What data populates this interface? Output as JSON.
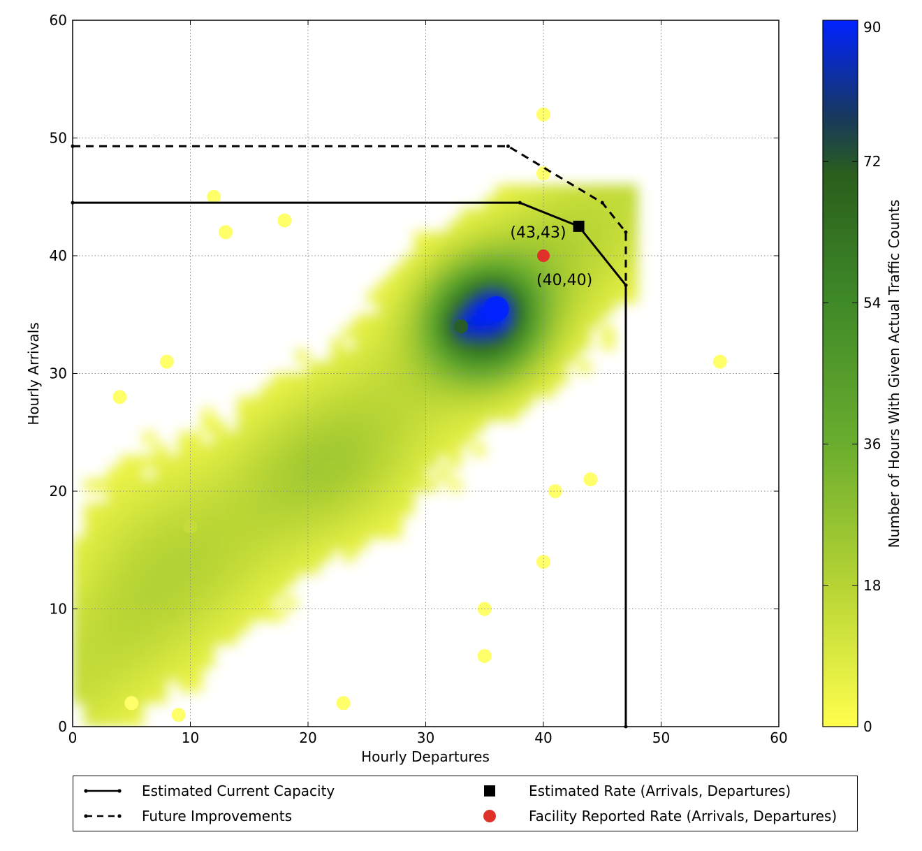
{
  "colors": {
    "cmap_low": "#ffff4d",
    "cmap_mid": "#4e9b2c",
    "cmap_dark": "#2a5f1c",
    "cmap_high": "#0022ff",
    "facility_point": "#e0302a",
    "estimated_point": "#000000",
    "grid": "#999999"
  },
  "chart_data": {
    "type": "heatmap",
    "xlabel": "Hourly Departures",
    "ylabel": "Hourly Arrivals",
    "xlim": [
      0,
      60
    ],
    "ylim": [
      0,
      60
    ],
    "xticks": [
      "0",
      "10",
      "20",
      "30",
      "40",
      "50",
      "60"
    ],
    "yticks": [
      "0",
      "10",
      "20",
      "30",
      "40",
      "50",
      "60"
    ],
    "grid": true,
    "colorbar": {
      "label": "Number of Hours With Given Actual Traffic Counts",
      "range": [
        0,
        90
      ],
      "ticks": [
        "0",
        "18",
        "36",
        "54",
        "72",
        "90"
      ]
    },
    "density_peaks": [
      {
        "x": 36,
        "y": 35.5,
        "count": 90
      },
      {
        "x": 33,
        "y": 34,
        "count": 70
      },
      {
        "x": 22,
        "y": 22,
        "count": 22
      },
      {
        "x": 10,
        "y": 17,
        "count": 14
      }
    ],
    "scattered_cells": [
      {
        "x": 40,
        "y": 52
      },
      {
        "x": 40,
        "y": 47
      },
      {
        "x": 55,
        "y": 31
      },
      {
        "x": 12,
        "y": 45
      },
      {
        "x": 13,
        "y": 42
      },
      {
        "x": 18,
        "y": 43
      },
      {
        "x": 23,
        "y": 2
      },
      {
        "x": 35,
        "y": 6
      },
      {
        "x": 35,
        "y": 10
      },
      {
        "x": 40,
        "y": 14
      },
      {
        "x": 44,
        "y": 21
      },
      {
        "x": 41,
        "y": 20
      },
      {
        "x": 9,
        "y": 1
      },
      {
        "x": 5,
        "y": 2
      },
      {
        "x": 4,
        "y": 28
      },
      {
        "x": 8,
        "y": 31
      }
    ],
    "series": [
      {
        "name": "Estimated Current Capacity",
        "style": "solid",
        "x": [
          0,
          38,
          43,
          47,
          47
        ],
        "y": [
          44.5,
          44.5,
          42.5,
          37.5,
          0
        ]
      },
      {
        "name": "Future Improvements",
        "style": "dashed",
        "x": [
          0,
          37,
          45,
          47,
          47
        ],
        "y": [
          49.3,
          49.3,
          44.5,
          42,
          37.5
        ]
      }
    ],
    "points": [
      {
        "name": "Estimated Rate (Arrivals, Departures)",
        "marker": "square",
        "x": 43,
        "y": 42.5,
        "label": "(43,43)"
      },
      {
        "name": "Facility Reported Rate (Arrivals, Departures)",
        "marker": "circle",
        "x": 40,
        "y": 40,
        "label": "(40,40)"
      }
    ],
    "legend": [
      "Estimated Current Capacity",
      "Future Improvements",
      "Estimated Rate (Arrivals, Departures)",
      "Facility Reported Rate (Arrivals, Departures)"
    ],
    "legend_position": "below"
  }
}
